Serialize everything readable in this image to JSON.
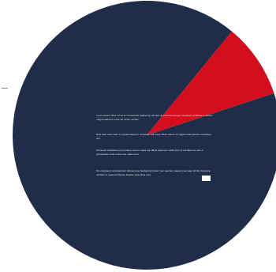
{
  "chart_data": {
    "type": "pie",
    "slices": [
      {
        "label": "",
        "value": 91,
        "color": "#1f2d48"
      },
      {
        "label": "",
        "value": 9,
        "color": "#d30f1d"
      }
    ],
    "title": "",
    "annotations": [
      "Lorem ipsum dolor sit amet consectetur adipiscing elit sed do eiusmod tempor incididunt ut labore et dolore magna aliqua ut enim ad minim veniam.",
      "Duis aute irure dolor in reprehenderit in voluptate velit esse cillum dolore eu fugiat nulla pariatur excepteur sint.",
      "Occaecat cupidatat non proident sunt in culpa qui officia deserunt mollit anim id est laborum sed ut perspiciatis unde omnis iste natus error.",
      "Sit voluptatem accusantium doloremque laudantium totam rem aperiam eaque ipsa quae ab illo inventore veritatis et quasi architecto beatae vitae dicta sunt."
    ]
  }
}
